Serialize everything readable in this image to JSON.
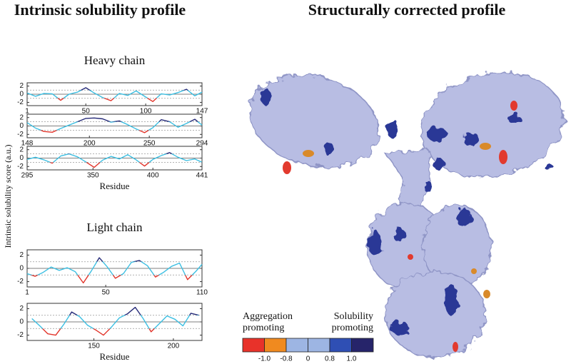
{
  "figure": {
    "left_title": "Intrinsic solubility profile",
    "right_title": "Structurally corrected profile",
    "y_label": "Intrinsic solubility score (a.u.)",
    "line_colors": {
      "low": "#e2342a",
      "mid": "#3cbfe2",
      "high": "#262a78"
    }
  },
  "chart_data": [
    {
      "type": "line",
      "title": "Heavy chain",
      "x": [
        1,
        8,
        15,
        22,
        29,
        36,
        43,
        50,
        57,
        64,
        71,
        78,
        85,
        92,
        99,
        106,
        113,
        120,
        127,
        134,
        141,
        147
      ],
      "values": [
        0.3,
        -0.5,
        0.2,
        0.1,
        -1.5,
        0.0,
        0.5,
        1.6,
        0.3,
        -0.8,
        -1.6,
        0.2,
        -0.3,
        0.8,
        -0.5,
        -1.8,
        0.1,
        -0.2,
        0.4,
        1.2,
        -0.4,
        0.5
      ],
      "xlim": [
        1,
        147
      ],
      "xticks": [
        1,
        50,
        100,
        147
      ],
      "ylim": [
        -2.8,
        2.8
      ],
      "yticks": [
        -2,
        0,
        2
      ],
      "hlines": [
        -1,
        1
      ]
    },
    {
      "type": "line",
      "x": [
        148,
        155,
        162,
        169,
        176,
        183,
        190,
        197,
        204,
        211,
        218,
        225,
        232,
        239,
        246,
        253,
        260,
        267,
        274,
        281,
        288,
        294
      ],
      "values": [
        0.8,
        -0.5,
        -1.3,
        -1.5,
        -0.6,
        0.2,
        1.0,
        1.8,
        1.9,
        1.7,
        0.9,
        1.2,
        0.3,
        -0.7,
        -1.6,
        -0.4,
        1.5,
        1.0,
        -0.3,
        0.6,
        1.6,
        0.2
      ],
      "xlim": [
        148,
        294
      ],
      "xticks": [
        148,
        200,
        250,
        294
      ],
      "ylim": [
        -2.8,
        2.8
      ],
      "yticks": [
        -2,
        0,
        2
      ],
      "hlines": [
        -1,
        1
      ]
    },
    {
      "type": "line",
      "xlabel": "Residue",
      "x": [
        295,
        302,
        309,
        316,
        323,
        330,
        337,
        344,
        351,
        358,
        365,
        372,
        379,
        386,
        393,
        400,
        407,
        414,
        421,
        428,
        435,
        441
      ],
      "values": [
        -0.3,
        0.2,
        -0.4,
        -1.2,
        0.5,
        1.0,
        0.3,
        -0.9,
        -2.2,
        -0.5,
        0.4,
        -0.2,
        0.8,
        -0.4,
        -1.9,
        -0.3,
        0.6,
        1.3,
        0.2,
        -0.6,
        -0.2,
        -1.0
      ],
      "xlim": [
        295,
        441
      ],
      "xticks": [
        295,
        350,
        400,
        441
      ],
      "ylim": [
        -2.8,
        2.8
      ],
      "yticks": [
        -2,
        0,
        2
      ],
      "hlines": [
        -1,
        1
      ]
    },
    {
      "type": "line",
      "title": "Light chain",
      "x": [
        1,
        6,
        11,
        16,
        21,
        26,
        31,
        36,
        41,
        46,
        51,
        56,
        61,
        66,
        71,
        76,
        81,
        86,
        91,
        96,
        101,
        106,
        110
      ],
      "values": [
        -0.8,
        -1.2,
        -0.6,
        0.2,
        -0.3,
        0.1,
        -0.5,
        -2.2,
        -0.4,
        1.6,
        0.2,
        -1.5,
        -0.8,
        0.9,
        1.2,
        0.4,
        -1.3,
        -0.6,
        0.3,
        0.8,
        -1.7,
        -0.5,
        0.6
      ],
      "xlim": [
        1,
        110
      ],
      "xticks": [
        1,
        50,
        110
      ],
      "ylim": [
        -2.8,
        2.8
      ],
      "yticks": [
        -2,
        0,
        2
      ],
      "hlines": [
        -1,
        1
      ]
    },
    {
      "type": "line",
      "xlabel": "Residue",
      "x": [
        111,
        116,
        121,
        126,
        131,
        136,
        141,
        146,
        151,
        156,
        161,
        166,
        171,
        176,
        181,
        186,
        191,
        196,
        201,
        206,
        211,
        216
      ],
      "values": [
        0.5,
        -0.6,
        -1.8,
        -2.0,
        -0.4,
        1.5,
        0.8,
        -0.5,
        -1.2,
        -2.0,
        -0.8,
        0.6,
        1.2,
        2.2,
        0.5,
        -1.5,
        -0.3,
        0.9,
        0.4,
        -0.6,
        1.3,
        1.0
      ],
      "xlim": [
        108,
        218
      ],
      "xticks": [
        150,
        200
      ],
      "ylim": [
        -2.8,
        2.8
      ],
      "yticks": [
        -2,
        0,
        2
      ],
      "hlines": [
        -1,
        1
      ]
    }
  ],
  "colorbar": {
    "left_label": [
      "Aggregation",
      "promoting"
    ],
    "right_label": [
      "Solubility",
      "promoting"
    ],
    "colors": [
      "#e8322a",
      "#f08a1f",
      "#9db5e3",
      "#9db5e3",
      "#2f4fb4",
      "#26246a"
    ],
    "ticks": [
      {
        "value": -1,
        "label": "-1.0"
      },
      -0.8,
      0,
      0.8,
      {
        "value": 1,
        "label": "1.0"
      }
    ]
  }
}
